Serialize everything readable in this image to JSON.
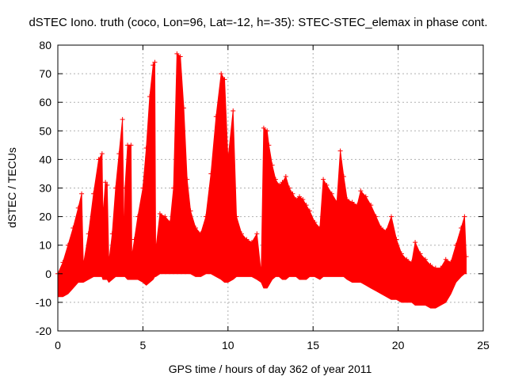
{
  "chart_data": {
    "type": "area",
    "title": "dSTEC Iono. truth (coco, Lon=96, Lat=-12, h=-35): STEC-STEC_elemax in phase cont.",
    "xlabel": "GPS time / hours of day 362 of year 2011",
    "ylabel": "dSTEC  / TECUs",
    "xlim": [
      0,
      25
    ],
    "ylim": [
      -20,
      80
    ],
    "x_ticks": [
      0,
      5,
      10,
      15,
      20,
      25
    ],
    "y_ticks": [
      -20,
      -10,
      0,
      10,
      20,
      30,
      40,
      50,
      60,
      70,
      80
    ],
    "x_tick_labels": [
      "0",
      "5",
      "10",
      "15",
      "20",
      "25"
    ],
    "y_tick_labels": [
      "-20",
      "-10",
      "0",
      "10",
      "20",
      "30",
      "40",
      "50",
      "60",
      "70",
      "80"
    ],
    "grid": true,
    "series_color": "#ff0000",
    "series": [
      {
        "x": [
          0.0,
          0.3,
          0.6,
          0.9,
          1.2,
          1.4,
          1.5,
          1.8,
          2.1,
          2.4,
          2.6,
          2.65,
          2.8,
          2.9,
          3.0,
          3.2,
          3.4,
          3.6,
          3.8,
          3.9,
          3.95,
          4.1,
          4.3,
          4.35,
          4.5,
          4.7,
          5.0,
          5.2,
          5.4,
          5.6,
          5.7,
          5.75,
          6.0,
          6.3,
          6.6,
          6.8,
          7.0,
          7.2,
          7.4,
          7.6,
          7.8,
          8.1,
          8.4,
          8.7,
          9.0,
          9.3,
          9.6,
          9.8,
          10.0,
          10.3,
          10.5,
          10.8,
          11.1,
          11.4,
          11.7,
          11.95,
          12.1,
          12.3,
          12.4,
          12.6,
          12.8,
          13.0,
          13.2,
          13.4,
          13.6,
          13.8,
          14.0,
          14.2,
          14.4,
          14.6,
          14.8,
          15.1,
          15.4,
          15.6,
          15.8,
          16.1,
          16.4,
          16.6,
          16.8,
          17.0,
          17.3,
          17.6,
          17.8,
          18.1,
          18.4,
          18.7,
          19.0,
          19.3,
          19.6,
          19.9,
          20.2,
          20.5,
          20.8,
          21.0,
          21.3,
          21.6,
          21.9,
          22.2,
          22.5,
          22.8,
          23.1,
          23.4,
          23.7,
          23.9,
          24.0
        ],
        "upper": [
          0.0,
          4.0,
          10.0,
          16.0,
          23.0,
          28.0,
          3.0,
          14.0,
          28.0,
          40.0,
          42.0,
          20.0,
          32.0,
          31.0,
          4.0,
          14.0,
          30.0,
          42.0,
          54.0,
          10.0,
          30.0,
          45.0,
          45.0,
          6.0,
          12.0,
          20.0,
          30.0,
          44.0,
          62.0,
          73.0,
          74.0,
          8.0,
          21.0,
          20.0,
          18.0,
          30.0,
          77.0,
          76.0,
          58.0,
          33.0,
          22.0,
          16.0,
          14.0,
          20.0,
          35.0,
          55.0,
          70.0,
          68.0,
          40.0,
          57.0,
          20.0,
          14.0,
          12.0,
          11.0,
          14.0,
          0.0,
          51.0,
          50.0,
          45.0,
          38.0,
          33.0,
          31.0,
          32.0,
          34.0,
          30.0,
          28.0,
          26.0,
          27.0,
          26.0,
          24.0,
          22.0,
          18.0,
          16.0,
          33.0,
          31.0,
          28.0,
          25.0,
          43.0,
          34.0,
          26.0,
          25.0,
          24.0,
          29.0,
          27.0,
          24.0,
          20.0,
          16.0,
          15.0,
          20.0,
          12.0,
          7.0,
          5.0,
          4.0,
          11.0,
          7.0,
          5.0,
          3.0,
          2.0,
          2.0,
          5.0,
          4.0,
          10.0,
          16.0,
          20.0,
          6.0
        ],
        "lower": [
          -8.0,
          -8.0,
          -7.0,
          -5.0,
          -3.0,
          -3.0,
          -3.0,
          -2.0,
          -1.0,
          -1.0,
          -1.0,
          -2.0,
          -2.0,
          -2.0,
          -3.0,
          -2.0,
          -1.0,
          -1.0,
          -1.0,
          -1.0,
          -1.0,
          -2.0,
          -2.0,
          -2.0,
          -2.0,
          -2.0,
          -3.0,
          -4.0,
          -3.0,
          -2.0,
          -1.0,
          -1.0,
          0.0,
          0.0,
          0.0,
          0.0,
          0.0,
          0.0,
          0.0,
          0.0,
          0.0,
          -1.0,
          -1.0,
          0.0,
          0.0,
          -1.0,
          -2.0,
          -3.0,
          -3.0,
          -2.0,
          -1.0,
          -1.0,
          -1.0,
          -1.0,
          -2.0,
          -3.0,
          -5.0,
          -5.0,
          -4.0,
          -2.0,
          -1.0,
          -1.0,
          -2.0,
          -2.0,
          -1.0,
          -1.0,
          -1.0,
          -2.0,
          -2.0,
          -2.0,
          -1.0,
          -1.0,
          -2.0,
          -1.0,
          -1.0,
          -1.0,
          -1.0,
          -1.0,
          -1.0,
          -2.0,
          -3.0,
          -3.0,
          -3.0,
          -4.0,
          -5.0,
          -6.0,
          -7.0,
          -8.0,
          -9.0,
          -9.0,
          -10.0,
          -10.0,
          -10.0,
          -11.0,
          -11.0,
          -11.0,
          -12.0,
          -12.0,
          -11.0,
          -10.0,
          -7.0,
          -3.0,
          -1.0,
          0.0,
          0.0
        ]
      }
    ]
  }
}
